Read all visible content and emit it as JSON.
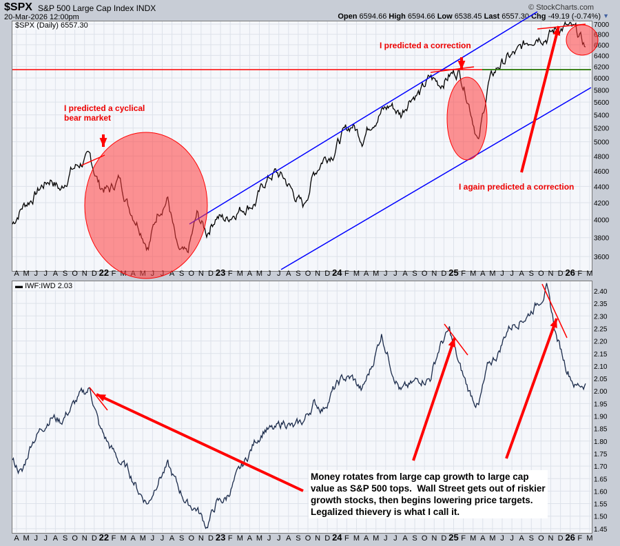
{
  "header": {
    "symbol": "$SPX",
    "name": "S&P 500 Large Cap Index",
    "exchange": "INDX",
    "datetime": "20-Mar-2026 12:00pm",
    "watermark": "© StockCharts.com",
    "quote": [
      {
        "k": "Open",
        "v": "6594.66"
      },
      {
        "k": "High",
        "v": "6594.66"
      },
      {
        "k": "Low",
        "v": "6538.45"
      },
      {
        "k": "Last",
        "v": "6557.30"
      },
      {
        "k": "Chg",
        "v": "-49.19 (-0.74%)"
      }
    ]
  },
  "chart_data": [
    {
      "type": "line",
      "legend": "$SPX (Daily) 6557.30",
      "scale": "log",
      "ylim": [
        3500,
        7100
      ],
      "color": "#000000",
      "yticks": [
        3600,
        3800,
        4000,
        4200,
        4400,
        4600,
        4800,
        5000,
        5200,
        5400,
        5600,
        5800,
        6000,
        6200,
        6400,
        6600,
        6800,
        7000
      ],
      "x": [
        "2021-04",
        "2021-05",
        "2021-06",
        "2021-07",
        "2021-08",
        "2021-09",
        "2021-10",
        "2021-11",
        "2021-12",
        "2022-01",
        "2022-02",
        "2022-03",
        "2022-04",
        "2022-05",
        "2022-06",
        "2022-07",
        "2022-08",
        "2022-09",
        "2022-10",
        "2022-11",
        "2022-12",
        "2023-01",
        "2023-02",
        "2023-03",
        "2023-04",
        "2023-05",
        "2023-06",
        "2023-07",
        "2023-08",
        "2023-09",
        "2023-10",
        "2023-11",
        "2023-12",
        "2024-01",
        "2024-02",
        "2024-03",
        "2024-04",
        "2024-05",
        "2024-06",
        "2024-07",
        "2024-08",
        "2024-09",
        "2024-10",
        "2024-11",
        "2024-12",
        "2025-01",
        "2025-02",
        "2025-03",
        "2025-04",
        "2025-05",
        "2025-06",
        "2025-07",
        "2025-08",
        "2025-09",
        "2025-10",
        "2025-11",
        "2025-12",
        "2026-01",
        "2026-02",
        "2026-03"
      ],
      "values": [
        3950,
        4150,
        4250,
        4400,
        4500,
        4350,
        4600,
        4700,
        4766,
        4400,
        4350,
        4500,
        4150,
        3950,
        3700,
        4100,
        4250,
        3650,
        3600,
        4050,
        3850,
        4050,
        4000,
        4100,
        4150,
        4200,
        4450,
        4580,
        4500,
        4300,
        4150,
        4550,
        4770,
        4850,
        5100,
        5250,
        5050,
        5300,
        5450,
        5550,
        5400,
        5700,
        5750,
        6000,
        5900,
        6050,
        6120,
        5600,
        4980,
        5900,
        6200,
        6350,
        6450,
        6650,
        6800,
        6750,
        6900,
        6950,
        6850,
        6557
      ]
    },
    {
      "type": "line",
      "legend": "IWF:IWD 2.03",
      "scale": "linear",
      "ylim": [
        1.43,
        2.44
      ],
      "color": "#1a2a4a",
      "yticks": [
        1.45,
        1.5,
        1.55,
        1.6,
        1.65,
        1.7,
        1.75,
        1.8,
        1.85,
        1.9,
        1.95,
        2.0,
        2.05,
        2.1,
        2.15,
        2.2,
        2.25,
        2.3,
        2.35,
        2.4
      ],
      "values": [
        1.72,
        1.67,
        1.8,
        1.85,
        1.9,
        1.88,
        1.93,
        1.98,
        2.01,
        1.85,
        1.78,
        1.72,
        1.68,
        1.6,
        1.55,
        1.65,
        1.7,
        1.62,
        1.55,
        1.53,
        1.46,
        1.55,
        1.57,
        1.65,
        1.72,
        1.8,
        1.85,
        1.84,
        1.88,
        1.85,
        1.88,
        1.95,
        1.93,
        2.0,
        2.05,
        2.05,
        2.0,
        2.1,
        2.23,
        2.1,
        2.0,
        2.02,
        2.05,
        2.05,
        2.18,
        2.24,
        2.1,
        2.0,
        1.94,
        2.1,
        2.15,
        2.25,
        2.28,
        2.3,
        2.35,
        2.41,
        2.22,
        2.1,
        2.02,
        2.03
      ]
    }
  ],
  "xaxis": [
    "A",
    "M",
    "J",
    "J",
    "A",
    "S",
    "O",
    "N",
    "D",
    "22",
    "F",
    "M",
    "A",
    "M",
    "J",
    "J",
    "A",
    "S",
    "O",
    "N",
    "D",
    "23",
    "F",
    "M",
    "A",
    "M",
    "J",
    "J",
    "A",
    "S",
    "O",
    "N",
    "D",
    "24",
    "F",
    "M",
    "A",
    "M",
    "J",
    "J",
    "A",
    "S",
    "O",
    "N",
    "D",
    "25",
    "F",
    "M",
    "A",
    "M",
    "J",
    "J",
    "A",
    "S",
    "O",
    "N",
    "D",
    "26",
    "F",
    "M"
  ],
  "annotations": {
    "bear": "I predicted a cyclical\nbear market",
    "correction": "I predicted a correction",
    "again": "I again predicted a correction",
    "rotation": "Money rotates from large cap growth to large cap\nvalue as S&P 500 tops.  Wall Street gets out of riskier\ngrowth stocks, then begins lowering price targets.\nLegalized thievery is what I call it."
  },
  "colors": {
    "annotation": "#ff0000",
    "channel": "#0000ff",
    "support": "#008800"
  }
}
